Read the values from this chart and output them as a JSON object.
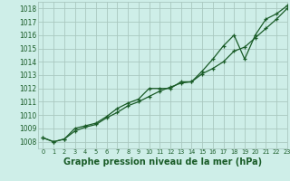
{
  "title": "Graphe pression niveau de la mer (hPa)",
  "background_color": "#ceeee8",
  "grid_color": "#aac8c0",
  "line_color": "#1a5c28",
  "xlim": [
    -0.5,
    23
  ],
  "ylim": [
    1007.5,
    1018.5
  ],
  "yticks": [
    1008,
    1009,
    1010,
    1011,
    1012,
    1013,
    1014,
    1015,
    1016,
    1017,
    1018
  ],
  "xticks": [
    0,
    1,
    2,
    3,
    4,
    5,
    6,
    7,
    8,
    9,
    10,
    11,
    12,
    13,
    14,
    15,
    16,
    17,
    18,
    19,
    20,
    21,
    22,
    23
  ],
  "series1_x": [
    0,
    1,
    2,
    3,
    4,
    5,
    6,
    7,
    8,
    9,
    10,
    11,
    12,
    13,
    14,
    15,
    16,
    17,
    18,
    19,
    20,
    21,
    22,
    23
  ],
  "series1_y": [
    1008.3,
    1008.0,
    1008.2,
    1008.8,
    1009.1,
    1009.3,
    1009.8,
    1010.2,
    1010.7,
    1011.0,
    1011.4,
    1011.8,
    1012.1,
    1012.4,
    1012.5,
    1013.1,
    1013.5,
    1014.0,
    1014.8,
    1015.1,
    1015.8,
    1016.5,
    1017.2,
    1018.0
  ],
  "series2_x": [
    0,
    1,
    2,
    3,
    4,
    5,
    6,
    7,
    8,
    9,
    10,
    11,
    12,
    13,
    14,
    15,
    16,
    17,
    18,
    19,
    20,
    21,
    22,
    23
  ],
  "series2_y": [
    1008.3,
    1008.0,
    1008.2,
    1009.0,
    1009.2,
    1009.4,
    1009.9,
    1010.5,
    1010.9,
    1011.2,
    1012.0,
    1012.0,
    1012.0,
    1012.5,
    1012.5,
    1013.3,
    1014.2,
    1015.2,
    1016.0,
    1014.2,
    1016.0,
    1017.2,
    1017.6,
    1018.2
  ],
  "label_fontsize": 5.5,
  "xlabel_fontsize": 7.0,
  "linewidth": 0.9,
  "markersize": 3.5
}
